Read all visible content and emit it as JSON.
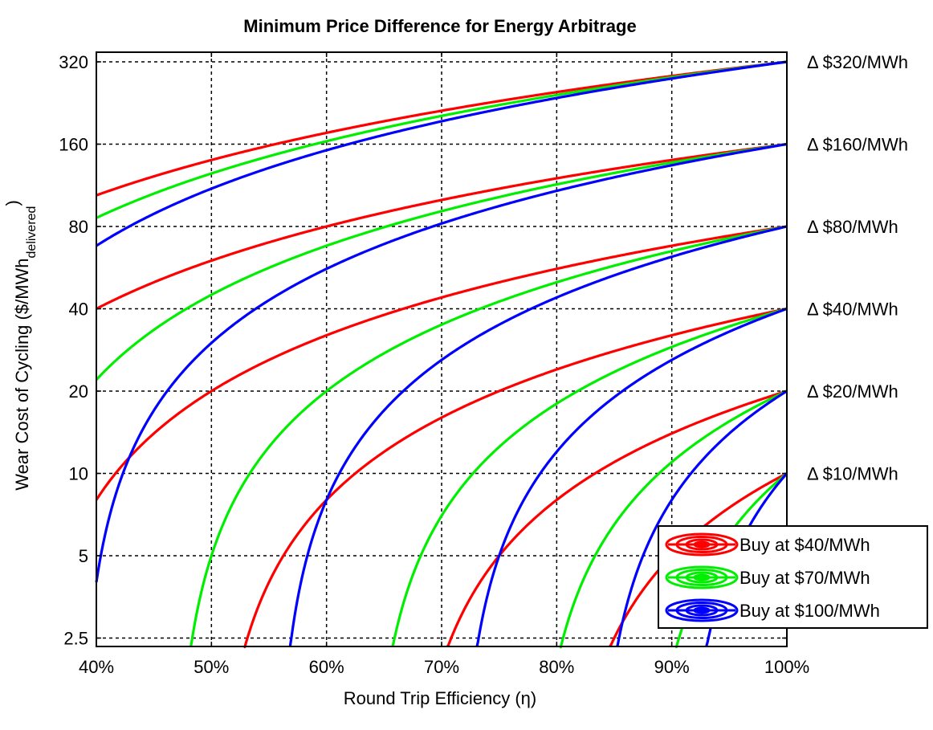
{
  "chart_data": {
    "type": "line",
    "title": "Minimum Price Difference for Energy Arbitrage",
    "xlabel": "Round Trip Efficiency (η)",
    "ylabel_main": "Wear Cost of Cycling ($/MWh",
    "ylabel_sub": "delivered",
    "ylabel_close": ")",
    "y_scale": "log2",
    "xlim": [
      0.4,
      1.0
    ],
    "ylim": [
      2.3,
      330
    ],
    "x_ticks": [
      {
        "value": 0.4,
        "label": "40%"
      },
      {
        "value": 0.5,
        "label": "50%"
      },
      {
        "value": 0.6,
        "label": "60%"
      },
      {
        "value": 0.7,
        "label": "70%"
      },
      {
        "value": 0.8,
        "label": "80%"
      },
      {
        "value": 0.9,
        "label": "90%"
      },
      {
        "value": 1.0,
        "label": "100%"
      }
    ],
    "y_ticks": [
      {
        "value": 2.5,
        "label": "2.5"
      },
      {
        "value": 5,
        "label": "5"
      },
      {
        "value": 10,
        "label": "10"
      },
      {
        "value": 20,
        "label": "20"
      },
      {
        "value": 40,
        "label": "40"
      },
      {
        "value": 80,
        "label": "80"
      },
      {
        "value": 160,
        "label": "160"
      },
      {
        "value": 320,
        "label": "320"
      }
    ],
    "grid": true,
    "price_differences": [
      {
        "value": 320,
        "label": "Δ $320/MWh"
      },
      {
        "value": 160,
        "label": "Δ $160/MWh"
      },
      {
        "value": 80,
        "label": "Δ $80/MWh"
      },
      {
        "value": 40,
        "label": "Δ $40/MWh"
      },
      {
        "value": 20,
        "label": "Δ $20/MWh"
      },
      {
        "value": 10,
        "label": "Δ $10/MWh"
      }
    ],
    "formula": "wear = (delta + buy_price) * efficiency - buy_price",
    "series": [
      {
        "name": "Buy at $40/MWh",
        "buy_price": 40,
        "color": "#ff0000"
      },
      {
        "name": "Buy at $70/MWh",
        "buy_price": 70,
        "color": "#00ee00"
      },
      {
        "name": "Buy at $100/MWh",
        "buy_price": 100,
        "color": "#0000ff"
      }
    ],
    "legend_position": "lower-right"
  }
}
